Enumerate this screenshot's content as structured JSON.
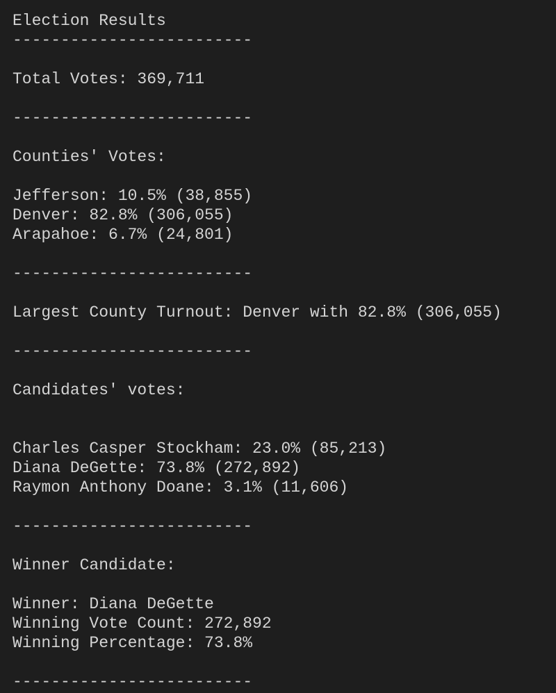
{
  "title": "Election Results",
  "separator": "-------------------------",
  "total_votes": "Total Votes: 369,711",
  "counties": {
    "heading": "Counties' Votes:",
    "rows": [
      "Jefferson: 10.5% (38,855)",
      "Denver: 82.8% (306,055)",
      "Arapahoe: 6.7% (24,801)"
    ]
  },
  "largest_county": "Largest County Turnout: Denver with 82.8% (306,055)",
  "candidates": {
    "heading": "Candidates' votes:",
    "rows": [
      "Charles Casper Stockham: 23.0% (85,213)",
      "Diana DeGette: 73.8% (272,892)",
      "Raymon Anthony Doane: 3.1% (11,606)"
    ]
  },
  "winner": {
    "heading": "Winner Candidate:",
    "rows": [
      "Winner: Diana DeGette",
      "Winning Vote Count: 272,892",
      "Winning Percentage: 73.8%"
    ]
  }
}
